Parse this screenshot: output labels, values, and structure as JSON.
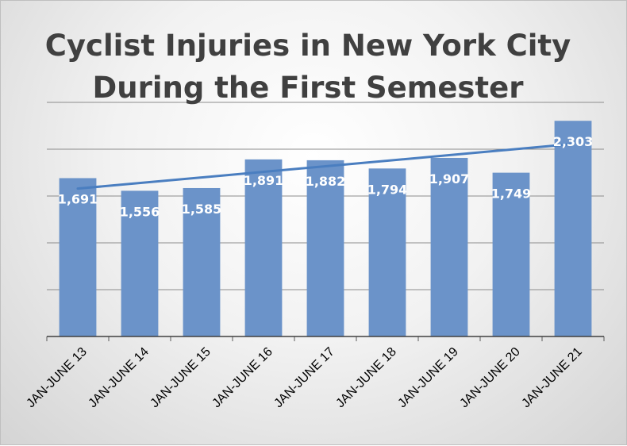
{
  "chart_data": {
    "type": "bar",
    "title_lines": [
      "Cyclist Injuries in New York City",
      "During the First Semester"
    ],
    "categories": [
      "JAN-JUNE 13",
      "JAN-JUNE 14",
      "JAN-JUNE 15",
      "JAN-JUNE 16",
      "JAN-JUNE 17",
      "JAN-JUNE 18",
      "JAN-JUNE 19",
      "JAN-JUNE 20",
      "JAN-JUNE 21"
    ],
    "values": [
      1691,
      1556,
      1585,
      1891,
      1882,
      1794,
      1907,
      1749,
      2303
    ],
    "value_labels": [
      "1,691",
      "1,556",
      "1,585",
      "1,891",
      "1,882",
      "1,794",
      "1,907",
      "1,749",
      "2,303"
    ],
    "ylim": [
      0,
      2500
    ],
    "gridlines": true,
    "trendline": "linear",
    "colors": {
      "bar": "#6b93c9",
      "trendline": "#4a7ec0",
      "grid": "#8c8c8c",
      "title": "#404040"
    }
  }
}
